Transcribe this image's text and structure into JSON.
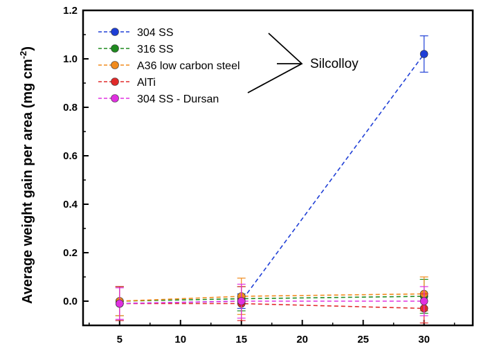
{
  "chart_data": {
    "type": "line",
    "title": "",
    "xlabel": "",
    "ylabel": "Average weight gain per area (mg cm",
    "ylabel_superscript": "-2",
    "ylabel_close": ")",
    "xlim": [
      2,
      34
    ],
    "ylim": [
      -0.1,
      1.2
    ],
    "x_ticks": [
      5,
      10,
      15,
      20,
      25,
      30
    ],
    "x_tick_labels": [
      "5",
      "10",
      "15",
      "20",
      "25",
      "30"
    ],
    "y_ticks": [
      0.0,
      0.2,
      0.4,
      0.6,
      0.8,
      1.0,
      1.2
    ],
    "y_tick_labels": [
      "0.0",
      "0.2",
      "0.4",
      "0.6",
      "0.8",
      "1.0",
      "1.2"
    ],
    "grid": false,
    "legend_position": "top-left",
    "x": [
      5,
      15,
      30
    ],
    "series": [
      {
        "name": "304 SS",
        "color": "#1f3fd6",
        "values": [
          -0.01,
          0.0,
          1.02
        ],
        "errors": [
          0.07,
          0.03,
          0.075
        ]
      },
      {
        "name": "316 SS",
        "color": "#1f8a1f",
        "values": [
          0.0,
          0.01,
          0.02
        ],
        "errors": [
          0.06,
          0.05,
          0.07
        ]
      },
      {
        "name": "A36 low carbon steel",
        "color": "#f08a1c",
        "values": [
          0.0,
          0.02,
          0.03
        ],
        "errors": [
          0.06,
          0.075,
          0.07
        ]
      },
      {
        "name": "AlTi",
        "color": "#e02a2a",
        "values": [
          -0.01,
          -0.01,
          -0.03
        ],
        "errors": [
          0.07,
          0.07,
          0.06
        ]
      },
      {
        "name": "304 SS - Dursan",
        "color": "#e030e0",
        "values": [
          -0.01,
          0.0,
          0.0
        ],
        "errors": [
          0.065,
          0.07,
          0.06
        ]
      }
    ],
    "annotation": {
      "text": "Silcolloy",
      "groups": [
        "304 SS",
        "316 SS",
        "A36 low carbon steel",
        "AlTi"
      ]
    }
  }
}
